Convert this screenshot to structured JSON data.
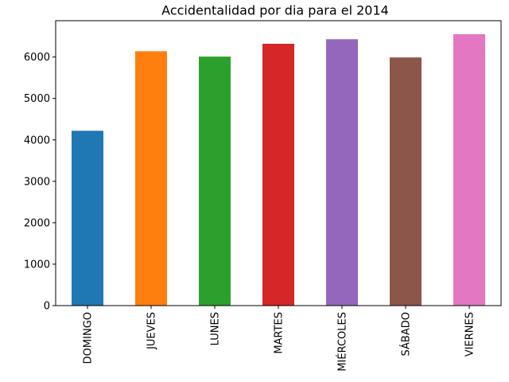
{
  "chart_data": {
    "type": "bar",
    "title": "Accidentalidad por dia para el 2014",
    "xlabel": "",
    "ylabel": "",
    "categories": [
      "DOMINGO",
      "JUEVES",
      "LUNES",
      "MARTES",
      "MIÉRCOLES",
      "SÁBADO",
      "VIERNES"
    ],
    "values": [
      4220,
      6140,
      6010,
      6320,
      6430,
      5990,
      6550
    ],
    "colors": [
      "#1f77b4",
      "#ff7f0e",
      "#2ca02c",
      "#d62728",
      "#9467bd",
      "#8c564b",
      "#e377c2"
    ],
    "ylim": [
      0,
      6877
    ],
    "yticks": [
      0,
      1000,
      2000,
      3000,
      4000,
      5000,
      6000
    ],
    "grid": false,
    "legend": "none"
  }
}
